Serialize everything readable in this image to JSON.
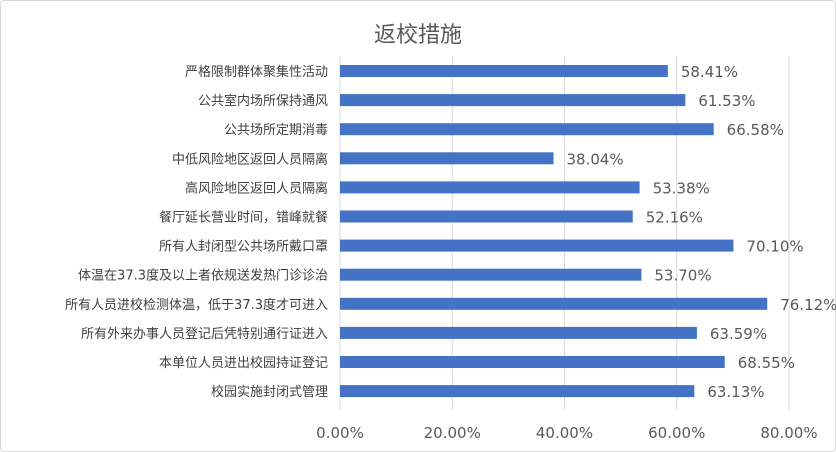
{
  "chart_data": {
    "type": "bar",
    "orientation": "horizontal",
    "title": "返校措施",
    "categories": [
      "严格限制群体聚集性活动",
      "公共室内场所保持通风",
      "公共场所定期消毒",
      "中低风险地区返回人员隔离",
      "高风险地区返回人员隔离",
      "餐厅延长营业时间，错峰就餐",
      "所有人封闭型公共场所戴口罩",
      "体温在37.3度及以上者依规送发热门诊诊治",
      "所有人员进校检测体温，低于37.3度才可进入",
      "所有外来办事人员登记后凭特别通行证进入",
      "本单位人员进出校园持证登记",
      "校园实施封闭式管理"
    ],
    "values": [
      58.41,
      61.53,
      66.58,
      38.04,
      53.38,
      52.16,
      70.1,
      53.7,
      76.12,
      63.59,
      68.55,
      63.13
    ],
    "data_labels": [
      "58.41%",
      "61.53%",
      "66.58%",
      "38.04%",
      "53.38%",
      "52.16%",
      "70.10%",
      "53.70%",
      "76.12%",
      "63.59%",
      "68.55%",
      "63.13%"
    ],
    "xlim": [
      0,
      80
    ],
    "x_ticks": [
      0,
      20,
      40,
      60,
      80
    ],
    "x_tick_labels": [
      "0.00%",
      "20.00%",
      "40.00%",
      "60.00%",
      "80.00%"
    ],
    "grid": true,
    "legend": "none",
    "bar_color": "#4472c4",
    "grid_color": "#d9d9d9",
    "text_color": "#595959"
  }
}
